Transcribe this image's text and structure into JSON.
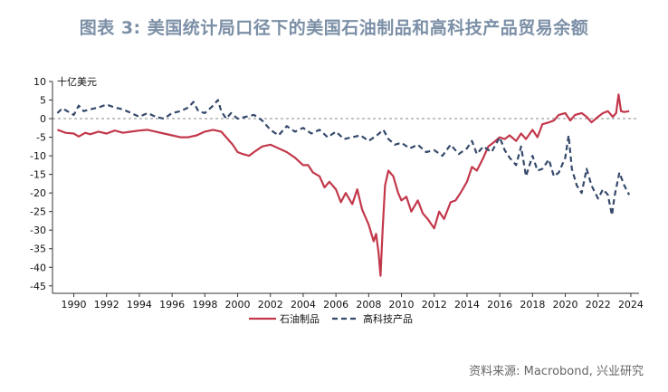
{
  "title": "图表 3: 美国统计局口径下的美国石油制品和高科技产品贸易余额",
  "source": "资料来源: Macrobond, 兴业研究",
  "colors": {
    "oil": "#c2384b",
    "tech": "#35496b",
    "axis": "#333333",
    "zero": "#888888"
  },
  "chart_data": {
    "type": "line",
    "unit_label": "十亿美元",
    "xlim": [
      1988.7,
      2024.5
    ],
    "ylim": [
      -47,
      10
    ],
    "y_ticks": [
      10,
      5,
      0,
      -5,
      -10,
      -15,
      -20,
      -25,
      -30,
      -35,
      -40,
      -45
    ],
    "x_ticks": [
      1990,
      1992,
      1994,
      1996,
      1998,
      2000,
      2002,
      2004,
      2006,
      2008,
      2010,
      2012,
      2014,
      2016,
      2018,
      2020,
      2022,
      2024
    ],
    "zero_line": 0,
    "legend": [
      "石油制品",
      "高科技产品"
    ],
    "series": [
      {
        "name": "石油制品",
        "key": "oil",
        "style": "solid",
        "points": [
          [
            1989.0,
            -3.0
          ],
          [
            1989.5,
            -3.8
          ],
          [
            1990.0,
            -4.0
          ],
          [
            1990.3,
            -4.8
          ],
          [
            1990.7,
            -3.8
          ],
          [
            1991.0,
            -4.2
          ],
          [
            1991.5,
            -3.5
          ],
          [
            1992.0,
            -4.0
          ],
          [
            1992.5,
            -3.2
          ],
          [
            1993.0,
            -3.8
          ],
          [
            1993.5,
            -3.5
          ],
          [
            1994.0,
            -3.2
          ],
          [
            1994.5,
            -3.0
          ],
          [
            1995.0,
            -3.5
          ],
          [
            1995.5,
            -4.0
          ],
          [
            1996.0,
            -4.5
          ],
          [
            1996.5,
            -5.0
          ],
          [
            1997.0,
            -5.0
          ],
          [
            1997.5,
            -4.5
          ],
          [
            1998.0,
            -3.5
          ],
          [
            1998.5,
            -3.0
          ],
          [
            1999.0,
            -3.5
          ],
          [
            1999.3,
            -5.0
          ],
          [
            1999.7,
            -7.0
          ],
          [
            2000.0,
            -9.0
          ],
          [
            2000.3,
            -9.5
          ],
          [
            2000.7,
            -10.0
          ],
          [
            2001.0,
            -9.0
          ],
          [
            2001.5,
            -7.5
          ],
          [
            2002.0,
            -7.0
          ],
          [
            2002.5,
            -8.0
          ],
          [
            2003.0,
            -9.0
          ],
          [
            2003.5,
            -10.5
          ],
          [
            2004.0,
            -12.5
          ],
          [
            2004.3,
            -12.5
          ],
          [
            2004.6,
            -14.5
          ],
          [
            2005.0,
            -15.5
          ],
          [
            2005.3,
            -18.5
          ],
          [
            2005.6,
            -17.0
          ],
          [
            2006.0,
            -19.0
          ],
          [
            2006.3,
            -22.5
          ],
          [
            2006.6,
            -20.0
          ],
          [
            2007.0,
            -23.0
          ],
          [
            2007.3,
            -19.0
          ],
          [
            2007.6,
            -24.5
          ],
          [
            2008.0,
            -28.5
          ],
          [
            2008.3,
            -33.0
          ],
          [
            2008.45,
            -31.0
          ],
          [
            2008.6,
            -36.0
          ],
          [
            2008.72,
            -42.3
          ],
          [
            2008.85,
            -30.0
          ],
          [
            2009.0,
            -18.0
          ],
          [
            2009.2,
            -14.0
          ],
          [
            2009.5,
            -15.5
          ],
          [
            2009.8,
            -20.0
          ],
          [
            2010.0,
            -22.0
          ],
          [
            2010.3,
            -21.0
          ],
          [
            2010.6,
            -25.0
          ],
          [
            2011.0,
            -22.0
          ],
          [
            2011.3,
            -25.5
          ],
          [
            2011.6,
            -27.0
          ],
          [
            2012.0,
            -29.5
          ],
          [
            2012.3,
            -25.0
          ],
          [
            2012.6,
            -27.0
          ],
          [
            2013.0,
            -22.5
          ],
          [
            2013.3,
            -22.0
          ],
          [
            2013.6,
            -20.0
          ],
          [
            2014.0,
            -17.0
          ],
          [
            2014.3,
            -13.0
          ],
          [
            2014.6,
            -14.0
          ],
          [
            2015.0,
            -10.5
          ],
          [
            2015.3,
            -7.5
          ],
          [
            2015.6,
            -6.5
          ],
          [
            2016.0,
            -5.0
          ],
          [
            2016.3,
            -5.5
          ],
          [
            2016.6,
            -4.5
          ],
          [
            2017.0,
            -6.0
          ],
          [
            2017.3,
            -4.0
          ],
          [
            2017.6,
            -5.5
          ],
          [
            2018.0,
            -3.0
          ],
          [
            2018.3,
            -5.0
          ],
          [
            2018.6,
            -1.5
          ],
          [
            2019.0,
            -1.0
          ],
          [
            2019.3,
            -0.5
          ],
          [
            2019.6,
            1.0
          ],
          [
            2020.0,
            1.5
          ],
          [
            2020.3,
            -0.5
          ],
          [
            2020.6,
            1.0
          ],
          [
            2021.0,
            1.5
          ],
          [
            2021.3,
            0.5
          ],
          [
            2021.6,
            -1.0
          ],
          [
            2022.0,
            0.5
          ],
          [
            2022.3,
            1.5
          ],
          [
            2022.6,
            2.0
          ],
          [
            2022.9,
            0.5
          ],
          [
            2023.1,
            1.5
          ],
          [
            2023.25,
            6.5
          ],
          [
            2023.4,
            2.0
          ],
          [
            2023.6,
            1.8
          ],
          [
            2023.9,
            2.0
          ]
        ]
      },
      {
        "name": "高科技产品",
        "key": "tech",
        "style": "dashed",
        "points": [
          [
            1989.0,
            1.5
          ],
          [
            1989.3,
            2.8
          ],
          [
            1989.6,
            2.0
          ],
          [
            1990.0,
            1.0
          ],
          [
            1990.3,
            3.5
          ],
          [
            1990.6,
            2.0
          ],
          [
            1991.0,
            2.5
          ],
          [
            1991.5,
            3.0
          ],
          [
            1992.0,
            3.8
          ],
          [
            1992.5,
            3.0
          ],
          [
            1993.0,
            2.5
          ],
          [
            1993.5,
            1.5
          ],
          [
            1994.0,
            0.5
          ],
          [
            1994.5,
            1.5
          ],
          [
            1995.0,
            0.5
          ],
          [
            1995.5,
            0.0
          ],
          [
            1996.0,
            1.5
          ],
          [
            1996.5,
            2.0
          ],
          [
            1997.0,
            3.0
          ],
          [
            1997.3,
            4.5
          ],
          [
            1997.6,
            2.0
          ],
          [
            1998.0,
            1.5
          ],
          [
            1998.5,
            3.5
          ],
          [
            1998.8,
            5.0
          ],
          [
            1999.0,
            2.0
          ],
          [
            1999.3,
            0.0
          ],
          [
            1999.6,
            1.5
          ],
          [
            2000.0,
            0.0
          ],
          [
            2000.5,
            0.5
          ],
          [
            2001.0,
            1.0
          ],
          [
            2001.5,
            -0.5
          ],
          [
            2002.0,
            -3.0
          ],
          [
            2002.5,
            -4.5
          ],
          [
            2003.0,
            -2.0
          ],
          [
            2003.5,
            -3.5
          ],
          [
            2004.0,
            -2.5
          ],
          [
            2004.5,
            -4.0
          ],
          [
            2005.0,
            -3.0
          ],
          [
            2005.5,
            -5.0
          ],
          [
            2006.0,
            -3.5
          ],
          [
            2006.5,
            -5.5
          ],
          [
            2007.0,
            -5.0
          ],
          [
            2007.5,
            -4.5
          ],
          [
            2008.0,
            -6.0
          ],
          [
            2008.5,
            -4.5
          ],
          [
            2008.9,
            -3.0
          ],
          [
            2009.2,
            -5.5
          ],
          [
            2009.6,
            -7.0
          ],
          [
            2010.0,
            -6.5
          ],
          [
            2010.5,
            -8.0
          ],
          [
            2011.0,
            -7.0
          ],
          [
            2011.5,
            -9.0
          ],
          [
            2012.0,
            -8.5
          ],
          [
            2012.5,
            -10.0
          ],
          [
            2013.0,
            -7.0
          ],
          [
            2013.5,
            -9.5
          ],
          [
            2014.0,
            -8.0
          ],
          [
            2014.3,
            -6.0
          ],
          [
            2014.6,
            -9.5
          ],
          [
            2015.0,
            -7.5
          ],
          [
            2015.5,
            -9.0
          ],
          [
            2016.0,
            -5.0
          ],
          [
            2016.3,
            -8.5
          ],
          [
            2016.6,
            -10.5
          ],
          [
            2017.0,
            -12.5
          ],
          [
            2017.3,
            -7.5
          ],
          [
            2017.6,
            -15.5
          ],
          [
            2018.0,
            -10.0
          ],
          [
            2018.3,
            -14.0
          ],
          [
            2018.6,
            -13.5
          ],
          [
            2019.0,
            -11.0
          ],
          [
            2019.3,
            -15.5
          ],
          [
            2019.6,
            -14.5
          ],
          [
            2020.0,
            -10.5
          ],
          [
            2020.2,
            -4.5
          ],
          [
            2020.4,
            -13.5
          ],
          [
            2020.7,
            -18.0
          ],
          [
            2021.0,
            -20.0
          ],
          [
            2021.3,
            -13.5
          ],
          [
            2021.6,
            -18.0
          ],
          [
            2022.0,
            -21.5
          ],
          [
            2022.3,
            -19.0
          ],
          [
            2022.6,
            -20.5
          ],
          [
            2022.85,
            -26.0
          ],
          [
            2023.0,
            -21.0
          ],
          [
            2023.3,
            -14.5
          ],
          [
            2023.6,
            -18.0
          ],
          [
            2023.9,
            -20.5
          ]
        ]
      }
    ]
  }
}
